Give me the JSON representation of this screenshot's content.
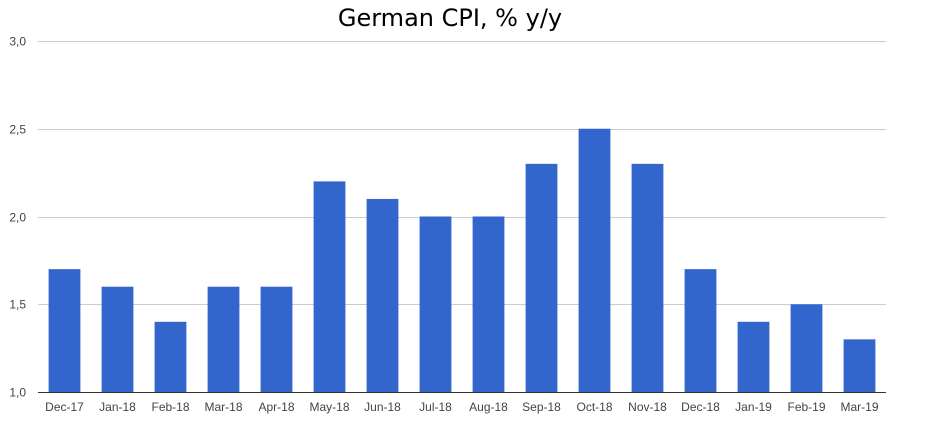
{
  "chart_data": {
    "type": "bar",
    "title": "German CPI, % y/y",
    "categories": [
      "Dec-17",
      "Jan-18",
      "Feb-18",
      "Mar-18",
      "Apr-18",
      "May-18",
      "Jun-18",
      "Jul-18",
      "Aug-18",
      "Sep-18",
      "Oct-18",
      "Nov-18",
      "Dec-18",
      "Jan-19",
      "Feb-19",
      "Mar-19"
    ],
    "values": [
      1.7,
      1.6,
      1.4,
      1.6,
      1.6,
      2.2,
      2.1,
      2.0,
      2.0,
      2.3,
      2.5,
      2.3,
      1.7,
      1.4,
      1.5,
      1.3
    ],
    "ylim": [
      1.0,
      3.0
    ],
    "yticks": [
      "1,0",
      "1,5",
      "2,0",
      "2,5",
      "3,0"
    ],
    "ytick_values": [
      1.0,
      1.5,
      2.0,
      2.5,
      3.0
    ],
    "bar_color": "#3366cc",
    "grid": true
  }
}
